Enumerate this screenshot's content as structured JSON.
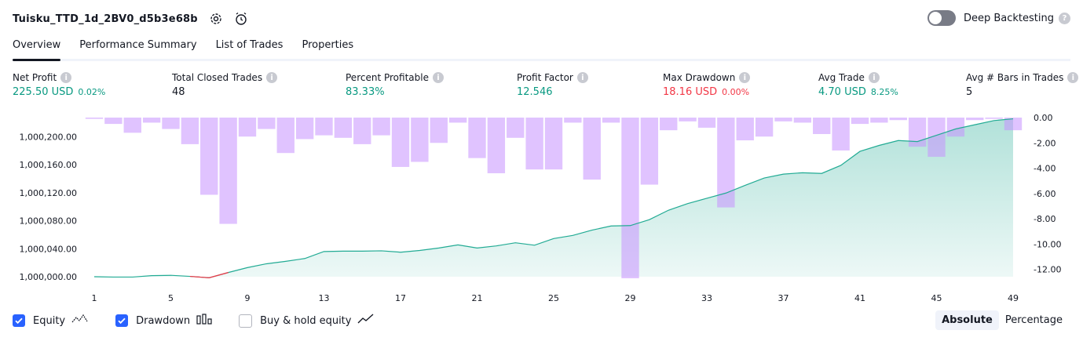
{
  "header": {
    "title": "Tuisku_TTD_1d_2BV0_d5b3e68b",
    "deep_label": "Deep Backtesting",
    "help": "?"
  },
  "tabs": [
    {
      "label": "Overview"
    },
    {
      "label": "Performance Summary"
    },
    {
      "label": "List of Trades"
    },
    {
      "label": "Properties"
    }
  ],
  "metrics": [
    {
      "label": "Net Profit",
      "value": "225.50 USD",
      "sub": "0.02%",
      "color": "#089981"
    },
    {
      "label": "Total Closed Trades",
      "value": "48",
      "sub": "",
      "color": "#131722"
    },
    {
      "label": "Percent Profitable",
      "value": "83.33%",
      "sub": "",
      "color": "#089981"
    },
    {
      "label": "Profit Factor",
      "value": "12.546",
      "sub": "",
      "color": "#089981"
    },
    {
      "label": "Max Drawdown",
      "value": "18.16 USD",
      "sub": "0.00%",
      "color": "#f23645"
    },
    {
      "label": "Avg Trade",
      "value": "4.70 USD",
      "sub": "8.25%",
      "color": "#089981"
    },
    {
      "label": "Avg # Bars in Trades",
      "value": "5",
      "sub": "",
      "color": "#131722"
    }
  ],
  "legend": {
    "equity": "Equity",
    "drawdown": "Drawdown",
    "buyhold": "Buy & hold equity"
  },
  "mode": {
    "absolute": "Absolute",
    "percentage": "Percentage"
  },
  "chart_data": {
    "type": "line",
    "x": [
      1,
      2,
      3,
      4,
      5,
      6,
      7,
      8,
      9,
      10,
      11,
      12,
      13,
      14,
      15,
      16,
      17,
      18,
      19,
      20,
      21,
      22,
      23,
      24,
      25,
      26,
      27,
      28,
      29,
      30,
      31,
      32,
      33,
      34,
      35,
      36,
      37,
      38,
      39,
      40,
      41,
      42,
      43,
      44,
      45,
      46,
      47,
      48,
      49
    ],
    "xticks": [
      1,
      5,
      9,
      13,
      17,
      21,
      25,
      29,
      33,
      37,
      41,
      45,
      49
    ],
    "series": [
      {
        "name": "Equity",
        "axis": "left",
        "values": [
          1000000.0,
          999999.5,
          999999.5,
          1000001.5,
          1000002.0,
          1000000.5,
          999998.5,
          1000006.0,
          1000013.0,
          1000018.5,
          1000022.0,
          1000026.0,
          1000036.0,
          1000036.5,
          1000036.5,
          1000037.0,
          1000035.0,
          1000037.5,
          1000041.0,
          1000045.5,
          1000041.0,
          1000044.0,
          1000048.5,
          1000045.0,
          1000054.5,
          1000059.0,
          1000066.5,
          1000072.5,
          1000073.0,
          1000081.5,
          1000095.0,
          1000104.5,
          1000112.0,
          1000119.5,
          1000130.5,
          1000141.0,
          1000146.5,
          1000148.5,
          1000147.5,
          1000159.0,
          1000179.0,
          1000187.5,
          1000194.5,
          1000193.0,
          1000202.0,
          1000211.0,
          1000217.0,
          1000223.0,
          1000225.5
        ]
      },
      {
        "name": "Drawdown",
        "axis": "right",
        "values": [
          -0.1,
          -0.5,
          -1.2,
          -0.4,
          -0.9,
          -2.1,
          -6.1,
          -8.4,
          -1.5,
          -0.9,
          -2.8,
          -1.7,
          -1.4,
          -1.6,
          -2.1,
          -1.4,
          -3.9,
          -3.5,
          -2.0,
          -0.4,
          -3.2,
          -4.4,
          -1.6,
          -4.1,
          -4.1,
          -0.4,
          -4.9,
          -0.4,
          -12.7,
          -5.3,
          -1.0,
          -0.3,
          -0.8,
          -7.1,
          -1.8,
          -1.5,
          -0.3,
          -0.4,
          -1.3,
          -2.6,
          -0.5,
          -0.4,
          -0.2,
          -2.3,
          -3.1,
          -1.5,
          -0.2,
          -0.1,
          -1.0
        ]
      }
    ],
    "ylim_left": [
      1000000,
      1000225
    ],
    "yticks_left": [
      "1,000,000.00",
      "1,000,040.00",
      "1,000,080.00",
      "1,000,120.00",
      "1,000,160.00",
      "1,000,200.00"
    ],
    "ylim_right": [
      -12.7,
      0
    ],
    "yticks_right": [
      "0.00",
      "-2.00",
      "-4.00",
      "-6.00",
      "-8.00",
      "-10.00",
      "-12.00"
    ],
    "colors": {
      "equity_line": "#22ab94",
      "equity_fill": "#22ab94",
      "drawdown_bar": "#c792ff"
    }
  }
}
